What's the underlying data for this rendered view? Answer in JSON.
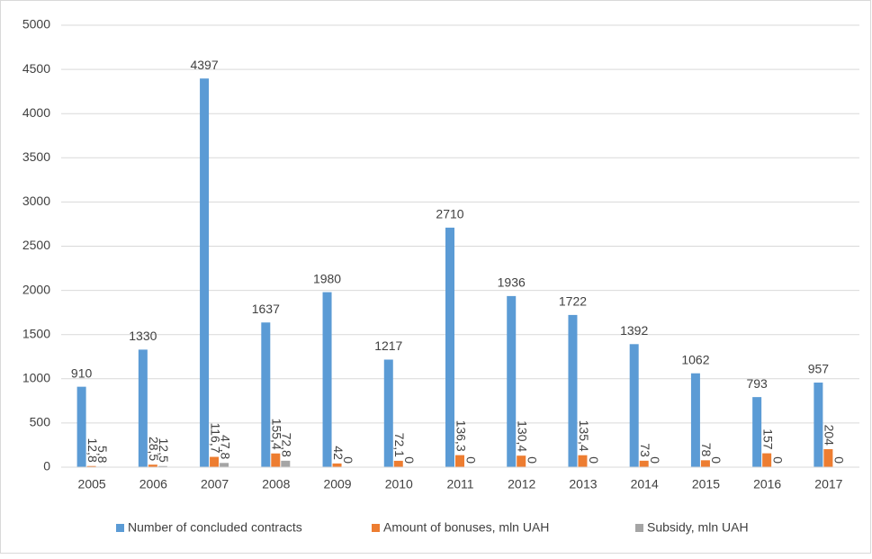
{
  "chart_data": {
    "type": "grouped_bar",
    "categories": [
      "2005",
      "2006",
      "2007",
      "2008",
      "2009",
      "2010",
      "2011",
      "2012",
      "2013",
      "2014",
      "2015",
      "2016",
      "2017"
    ],
    "series": [
      {
        "name": "Number of concluded contracts",
        "color": "#5b9bd5",
        "values": [
          910,
          1330,
          4397,
          1637,
          1980,
          1217,
          2710,
          1936,
          1722,
          1392,
          1062,
          793,
          957
        ]
      },
      {
        "name": "Amount of bonuses, mln UAH",
        "color": "#ed7d31",
        "values": [
          12.8,
          28.5,
          116.7,
          155.4,
          42,
          72.1,
          136.3,
          130.4,
          135.4,
          73,
          78,
          157,
          204
        ],
        "value_labels": [
          "12,8",
          "28,5",
          "116,7",
          "155,4",
          "42",
          "72,1",
          "136,3",
          "130,4",
          "135,4",
          "73",
          "78",
          "157",
          "204"
        ]
      },
      {
        "name": "Subsidy, mln UAH",
        "color": "#a5a5a5",
        "values": [
          5.8,
          12.5,
          47.8,
          72.8,
          0,
          0,
          0,
          0,
          0,
          0,
          0,
          0,
          0
        ],
        "value_labels": [
          "5,8",
          "12,5",
          "47,8",
          "72,8",
          "0",
          "0",
          "0",
          "0",
          "0",
          "0",
          "0",
          "0",
          "0"
        ]
      }
    ],
    "ylim": [
      0,
      5000
    ],
    "yticks": [
      0,
      500,
      1000,
      1500,
      2000,
      2500,
      3000,
      3500,
      4000,
      4500,
      5000
    ],
    "grid": true,
    "legend": "bottom"
  }
}
